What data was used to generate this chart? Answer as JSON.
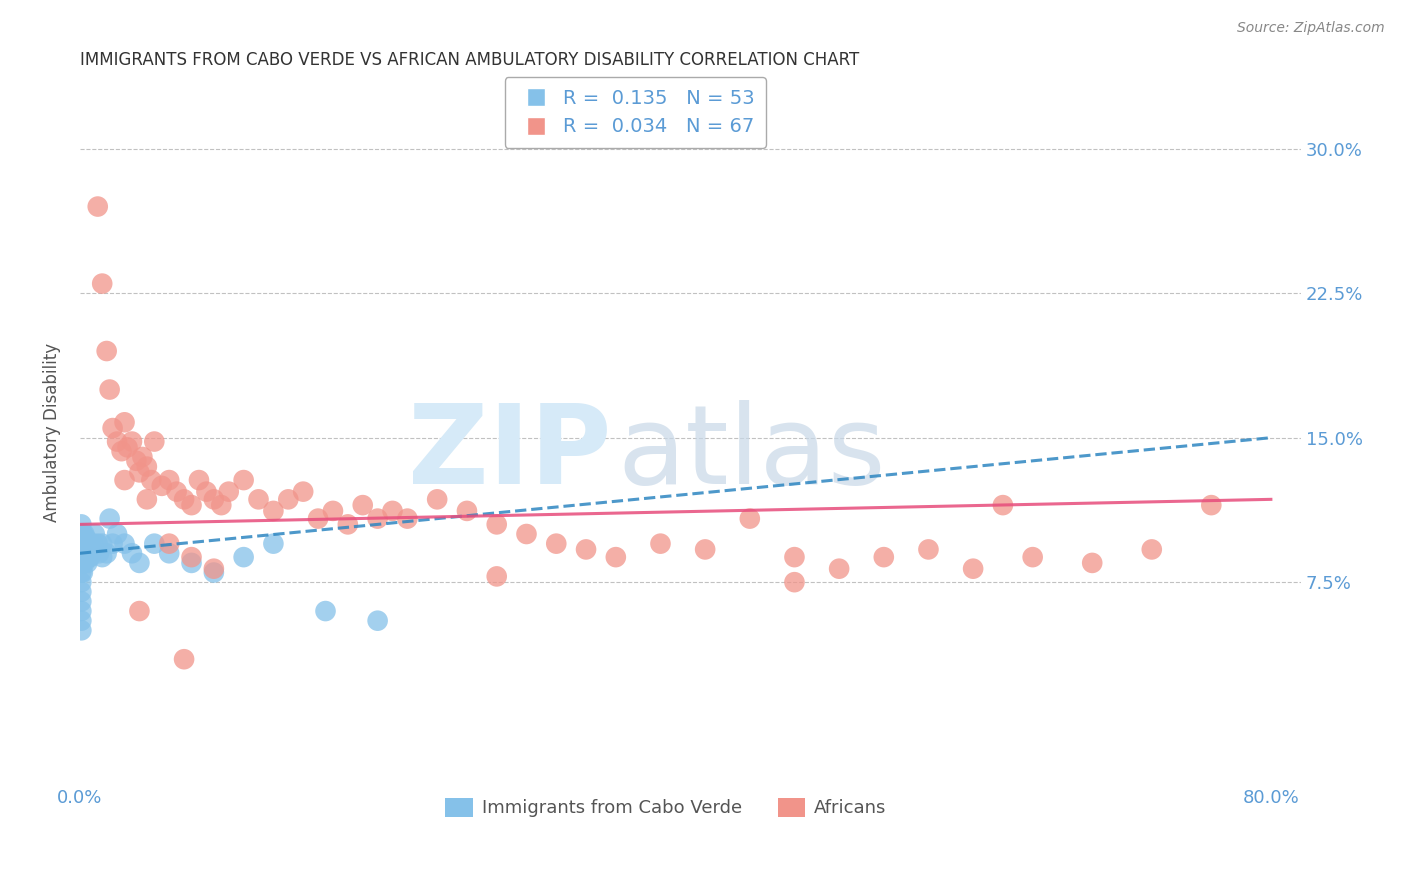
{
  "title": "IMMIGRANTS FROM CABO VERDE VS AFRICAN AMBULATORY DISABILITY CORRELATION CHART",
  "source": "Source: ZipAtlas.com",
  "ylabel": "Ambulatory Disability",
  "series1_label": "Immigrants from Cabo Verde",
  "series2_label": "Africans",
  "legend_r1": "0.135",
  "legend_n1": "53",
  "legend_r2": "0.034",
  "legend_n2": "67",
  "blue_color": "#85C1E9",
  "pink_color": "#F1948A",
  "blue_line_color": "#2E86C1",
  "pink_line_color": "#E74C7C",
  "axis_label_color": "#5B9BD5",
  "title_color": "#333333",
  "watermark_zip_color": "#D6EAF8",
  "watermark_atlas_color": "#C8D8E8",
  "xlim": [
    0.0,
    0.82
  ],
  "ylim": [
    -0.03,
    0.335
  ],
  "yticks": [
    0.075,
    0.15,
    0.225,
    0.3
  ],
  "ytick_labels": [
    "7.5%",
    "15.0%",
    "22.5%",
    "30.0%"
  ],
  "xticks": [
    0.0,
    0.8
  ],
  "xtick_labels": [
    "0.0%",
    "80.0%"
  ],
  "blue_x": [
    0.001,
    0.001,
    0.001,
    0.001,
    0.001,
    0.001,
    0.001,
    0.001,
    0.001,
    0.001,
    0.001,
    0.002,
    0.002,
    0.002,
    0.002,
    0.002,
    0.003,
    0.003,
    0.003,
    0.003,
    0.004,
    0.004,
    0.004,
    0.005,
    0.005,
    0.005,
    0.006,
    0.006,
    0.007,
    0.007,
    0.008,
    0.009,
    0.01,
    0.012,
    0.013,
    0.015,
    0.015,
    0.018,
    0.02,
    0.022,
    0.025,
    0.03,
    0.035,
    0.04,
    0.05,
    0.06,
    0.075,
    0.09,
    0.11,
    0.13,
    0.165,
    0.2,
    0.001
  ],
  "blue_y": [
    0.105,
    0.1,
    0.095,
    0.09,
    0.085,
    0.08,
    0.075,
    0.07,
    0.065,
    0.06,
    0.055,
    0.1,
    0.095,
    0.09,
    0.085,
    0.08,
    0.1,
    0.095,
    0.09,
    0.085,
    0.098,
    0.092,
    0.087,
    0.095,
    0.09,
    0.085,
    0.095,
    0.088,
    0.095,
    0.088,
    0.09,
    0.095,
    0.1,
    0.095,
    0.09,
    0.095,
    0.088,
    0.09,
    0.108,
    0.095,
    0.1,
    0.095,
    0.09,
    0.085,
    0.095,
    0.09,
    0.085,
    0.08,
    0.088,
    0.095,
    0.06,
    0.055,
    0.05
  ],
  "pink_x": [
    0.012,
    0.015,
    0.018,
    0.02,
    0.022,
    0.025,
    0.028,
    0.03,
    0.032,
    0.035,
    0.038,
    0.04,
    0.042,
    0.045,
    0.048,
    0.05,
    0.055,
    0.06,
    0.065,
    0.07,
    0.075,
    0.08,
    0.085,
    0.09,
    0.095,
    0.1,
    0.11,
    0.12,
    0.13,
    0.14,
    0.15,
    0.16,
    0.17,
    0.18,
    0.19,
    0.2,
    0.21,
    0.22,
    0.24,
    0.26,
    0.28,
    0.3,
    0.32,
    0.34,
    0.36,
    0.39,
    0.42,
    0.45,
    0.48,
    0.51,
    0.54,
    0.57,
    0.6,
    0.64,
    0.68,
    0.72,
    0.76,
    0.03,
    0.045,
    0.06,
    0.075,
    0.09,
    0.28,
    0.48,
    0.62,
    0.04,
    0.07
  ],
  "pink_y": [
    0.27,
    0.23,
    0.195,
    0.175,
    0.155,
    0.148,
    0.143,
    0.158,
    0.145,
    0.148,
    0.138,
    0.132,
    0.14,
    0.135,
    0.128,
    0.148,
    0.125,
    0.128,
    0.122,
    0.118,
    0.115,
    0.128,
    0.122,
    0.118,
    0.115,
    0.122,
    0.128,
    0.118,
    0.112,
    0.118,
    0.122,
    0.108,
    0.112,
    0.105,
    0.115,
    0.108,
    0.112,
    0.108,
    0.118,
    0.112,
    0.105,
    0.1,
    0.095,
    0.092,
    0.088,
    0.095,
    0.092,
    0.108,
    0.088,
    0.082,
    0.088,
    0.092,
    0.082,
    0.088,
    0.085,
    0.092,
    0.115,
    0.128,
    0.118,
    0.095,
    0.088,
    0.082,
    0.078,
    0.075,
    0.115,
    0.06,
    0.035
  ]
}
